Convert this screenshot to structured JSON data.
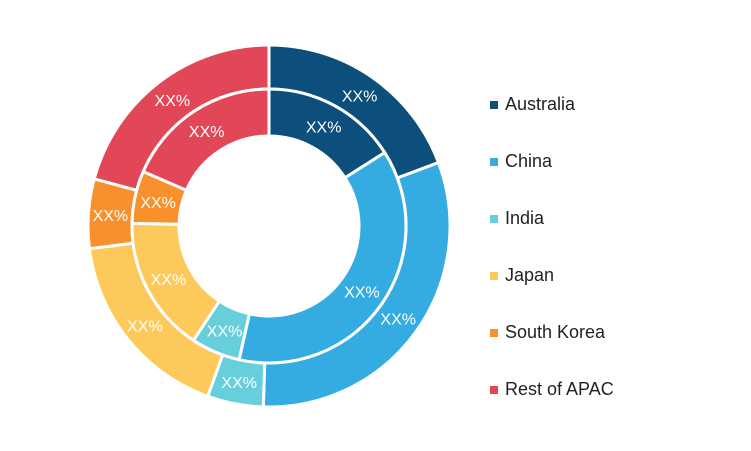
{
  "chart_data": {
    "type": "donut",
    "categories": [
      "Australia",
      "China",
      "India",
      "Japan",
      "South Korea",
      "Rest of APAC"
    ],
    "colors": [
      "#0d4f7c",
      "#34ace2",
      "#67cfdb",
      "#fec95b",
      "#f7902d",
      "#e24758"
    ],
    "series": [
      {
        "values": [
          0.193,
          0.312,
          0.05,
          0.175,
          0.062,
          0.208
        ],
        "labels": [
          "XX%",
          "XX%",
          "XX%",
          "XX%",
          "XX%",
          "XX%"
        ]
      },
      {
        "values": [
          0.16,
          0.375,
          0.058,
          0.16,
          0.062,
          0.185
        ],
        "labels": [
          "XX%",
          "XX%",
          "XX%",
          "XX%",
          "XX%",
          "XX%"
        ]
      }
    ],
    "legend_position": "right"
  }
}
